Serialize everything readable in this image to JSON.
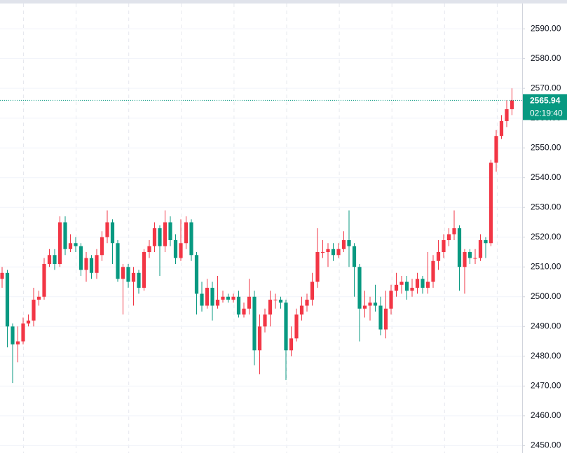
{
  "chart_data": {
    "type": "candlestick",
    "up_color": "#f23645",
    "down_color": "#089981",
    "ylim": [
      2447.5,
      2598.5
    ],
    "yticks": [
      {
        "value": 2450,
        "label": "2450.00"
      },
      {
        "value": 2460,
        "label": "2460.00"
      },
      {
        "value": 2470,
        "label": "2470.00"
      },
      {
        "value": 2480,
        "label": "2480.00"
      },
      {
        "value": 2490,
        "label": "2490.00"
      },
      {
        "value": 2500,
        "label": "2500.00"
      },
      {
        "value": 2510,
        "label": "2510.00"
      },
      {
        "value": 2520,
        "label": "2520.00"
      },
      {
        "value": 2530,
        "label": "2530.00"
      },
      {
        "value": 2540,
        "label": "2540.00"
      },
      {
        "value": 2550,
        "label": "2550.00"
      },
      {
        "value": 2560,
        "label": "2560.00"
      },
      {
        "value": 2570,
        "label": "2570.00"
      },
      {
        "value": 2580,
        "label": "2580.00"
      },
      {
        "value": 2590,
        "label": "2590.00"
      }
    ],
    "grid": true,
    "last_price": 2565.94,
    "countdown": "02:19:40",
    "open": [
      2506,
      2508,
      2490,
      2484,
      2485,
      2491,
      2492,
      2499,
      2500,
      2511,
      2514,
      2511,
      2525,
      2516,
      2518,
      2517,
      2509,
      2513,
      2508,
      2514,
      2520,
      2525,
      2518,
      2506,
      2510,
      2505,
      2508,
      2503,
      2515,
      2517,
      2523,
      2517,
      2525,
      2519,
      2513,
      2518,
      2525,
      2514,
      2501,
      2497,
      2503,
      2497,
      2499,
      2500,
      2499,
      2500,
      2494,
      2496,
      2500,
      2482,
      2490,
      2494,
      2499,
      2499,
      2498,
      2482,
      2486,
      2494,
      2497,
      2499,
      2505,
      2515,
      2515,
      2516,
      2514,
      2516,
      2519,
      2517,
      2510,
      2496,
      2497,
      2498,
      2497,
      2489,
      2496,
      2502,
      2504,
      2505,
      2502,
      2503,
      2506,
      2503,
      2505,
      2512,
      2515,
      2519,
      2521,
      2523,
      2510,
      2515,
      2513,
      2513,
      2519,
      2518,
      2545,
      2554,
      2559,
      2563
    ],
    "high": [
      2510,
      2509,
      2491,
      2490,
      2493,
      2494,
      2503,
      2502,
      2513,
      2516,
      2516,
      2527,
      2527,
      2521,
      2520,
      2518,
      2515,
      2514,
      2516,
      2522,
      2529,
      2526,
      2519,
      2511,
      2511,
      2510,
      2509,
      2516,
      2519,
      2525,
      2524,
      2529,
      2527,
      2521,
      2526,
      2527,
      2526,
      2515,
      2505,
      2506,
      2505,
      2507,
      2502,
      2501,
      2501,
      2502,
      2498,
      2506,
      2502,
      2494,
      2496,
      2502,
      2501,
      2500,
      2499,
      2490,
      2496,
      2500,
      2501,
      2508,
      2523,
      2519,
      2518,
      2518,
      2518,
      2522,
      2529,
      2518,
      2511,
      2502,
      2500,
      2504,
      2500,
      2502,
      2504,
      2508,
      2507,
      2507,
      2506,
      2508,
      2507,
      2515,
      2514,
      2519,
      2521,
      2523,
      2529,
      2524,
      2516,
      2516,
      2516,
      2521,
      2520,
      2546,
      2556,
      2561,
      2566,
      2570
    ],
    "low": [
      2503,
      2483,
      2471,
      2478,
      2484,
      2490,
      2490,
      2497,
      2499,
      2510,
      2509,
      2510,
      2514,
      2515,
      2515,
      2507,
      2505,
      2506,
      2506,
      2512,
      2518,
      2511,
      2505,
      2494,
      2503,
      2497,
      2501,
      2502,
      2513,
      2515,
      2507,
      2515,
      2517,
      2511,
      2512,
      2516,
      2512,
      2494,
      2495,
      2496,
      2492,
      2496,
      2498,
      2498,
      2498,
      2493,
      2493,
      2494,
      2477,
      2474,
      2488,
      2490,
      2496,
      2496,
      2472,
      2480,
      2485,
      2492,
      2495,
      2497,
      2503,
      2513,
      2510,
      2512,
      2513,
      2515,
      2510,
      2500,
      2485,
      2493,
      2492,
      2495,
      2487,
      2486,
      2494,
      2500,
      2501,
      2499,
      2500,
      2501,
      2501,
      2501,
      2503,
      2509,
      2513,
      2517,
      2519,
      2502,
      2501,
      2511,
      2511,
      2512,
      2513,
      2517,
      2542,
      2553,
      2557,
      2561
    ],
    "close": [
      2508,
      2490,
      2484,
      2485,
      2491,
      2492,
      2499,
      2500,
      2511,
      2514,
      2511,
      2525,
      2516,
      2518,
      2517,
      2509,
      2513,
      2508,
      2514,
      2520,
      2525,
      2518,
      2506,
      2510,
      2505,
      2508,
      2503,
      2515,
      2517,
      2523,
      2517,
      2525,
      2519,
      2513,
      2518,
      2525,
      2514,
      2501,
      2497,
      2503,
      2497,
      2499,
      2500,
      2499,
      2500,
      2494,
      2496,
      2500,
      2482,
      2490,
      2494,
      2499,
      2499,
      2498,
      2482,
      2486,
      2494,
      2497,
      2499,
      2505,
      2515,
      2515,
      2516,
      2514,
      2516,
      2519,
      2517,
      2510,
      2496,
      2497,
      2498,
      2497,
      2489,
      2496,
      2502,
      2504,
      2505,
      2502,
      2503,
      2506,
      2503,
      2505,
      2512,
      2515,
      2519,
      2521,
      2523,
      2510,
      2515,
      2513,
      2513,
      2519,
      2518,
      2545,
      2554,
      2559,
      2563,
      2565.94
    ]
  }
}
